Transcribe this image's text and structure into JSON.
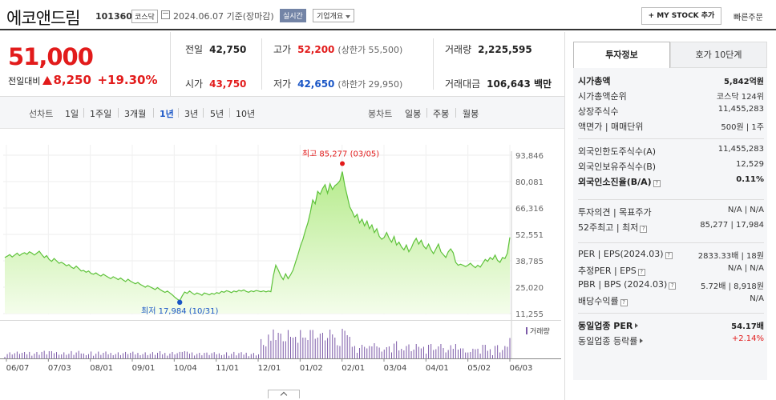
{
  "header": {
    "name": "에코앤드림",
    "code": "101360",
    "market": "코스닥",
    "date_text": "2024.06.07 기준(장마감)",
    "realtime_label": "실시간",
    "corp_info_label": "기업개요",
    "mystock_label": "MY STOCK 추가",
    "fast_order_label": "빠른주문"
  },
  "price": {
    "current": "51,000",
    "change_label": "전일대비",
    "change": "8,250",
    "change_pct": "+19.30%"
  },
  "quote": {
    "prev_label": "전일",
    "prev": "42,750",
    "high_label": "고가",
    "high": "52,200",
    "high_sub": "(상한가 55,500)",
    "volume_label": "거래량",
    "volume": "2,225,595",
    "open_label": "시가",
    "open": "43,750",
    "low_label": "저가",
    "low": "42,650",
    "low_sub": "(하한가 29,950)",
    "amount_label": "거래대금",
    "amount": "106,643 백만"
  },
  "tabs": {
    "line_label": "선차트",
    "periods": [
      "1일",
      "1주일",
      "3개월",
      "1년",
      "3년",
      "5년",
      "10년"
    ],
    "active": "1년",
    "candle_label": "봉차트",
    "candles": [
      "일봉",
      "주봉",
      "월봉"
    ]
  },
  "chart_data": {
    "type": "area",
    "y_ticks": [
      "93,846",
      "80,081",
      "66,316",
      "52,551",
      "38,785",
      "25,020",
      "11,255"
    ],
    "ylim": [
      11255,
      93846
    ],
    "x_ticks": [
      "06/07",
      "07/03",
      "08/01",
      "09/01",
      "10/04",
      "11/01",
      "12/01",
      "01/02",
      "02/01",
      "03/04",
      "04/01",
      "05/02",
      "06/03"
    ],
    "high_label": "최고 85,277 (03/05)",
    "low_label": "최저 17,984 (10/31)",
    "volume_label": "거래량",
    "series": [
      {
        "values": [
          40500,
          41200,
          42000,
          40800,
          41800,
          42800,
          41500,
          42500,
          43000,
          42200,
          43500,
          42800,
          41800,
          42800,
          43800,
          42000,
          40500,
          41500,
          39500,
          38500,
          40000,
          38800,
          37500,
          38000,
          37200,
          36200,
          36800,
          35500,
          34800,
          36000,
          34800,
          33500,
          33800,
          32800,
          33500,
          32200,
          31800,
          32500,
          31500,
          30800,
          31800,
          31000,
          30200,
          29500,
          30500,
          29800,
          29000,
          29800,
          28800,
          28000,
          29200,
          28200,
          27500,
          26800,
          27500,
          26500,
          25800,
          25000,
          25800,
          25200,
          24500,
          23800,
          24800,
          23800,
          23000,
          22300,
          23000,
          22000,
          21000,
          19800,
          18800,
          17984,
          20500,
          22500,
          21800,
          23000,
          22000,
          21200,
          22000,
          21500,
          20800,
          22000,
          21600,
          21000,
          21800,
          21400,
          22200,
          21800,
          22800,
          22400,
          23200,
          22800,
          22200,
          23000,
          22600,
          23400,
          23000,
          23600,
          22800,
          22400,
          23100,
          22700,
          23300,
          23000,
          22700,
          23100,
          22600,
          23000,
          22700,
          31000,
          36500,
          34000,
          31000,
          29000,
          32000,
          29500,
          31500,
          34000,
          38000,
          42000,
          46500,
          50000,
          54500,
          58500,
          64000,
          70500,
          68500,
          75000,
          73500,
          76500,
          78500,
          74000,
          79000,
          76000,
          78000,
          79000,
          80500,
          85277,
          78000,
          72500,
          67000,
          64500,
          61500,
          63000,
          58500,
          60500,
          57000,
          59500,
          55500,
          57500,
          53500,
          55500,
          51500,
          50000,
          51000,
          53500,
          50500,
          48500,
          51500,
          47000,
          48500,
          46000,
          44500,
          47000,
          43500,
          45500,
          48500,
          50500,
          47500,
          49500,
          46500,
          45000,
          47500,
          44500,
          42500,
          45000,
          47500,
          43500,
          42000,
          40500,
          43500,
          45000,
          43000,
          38000,
          36500,
          37000,
          36500,
          35800,
          36500,
          37500,
          36200,
          35200,
          36500,
          35500,
          37500,
          39500,
          38500,
          40500,
          39500,
          41800,
          39000,
          38000,
          40500,
          40000,
          42750,
          51000
        ]
      }
    ]
  },
  "right_panel": {
    "tab_invest": "투자정보",
    "tab_hoga": "호가 10단계",
    "rows1": [
      {
        "k": "시가총액",
        "v": "5,842억원",
        "bold": true
      },
      {
        "k": "시가총액순위",
        "v": "코스닥 124위"
      },
      {
        "k": "상장주식수",
        "v": "11,455,283"
      },
      {
        "k": "액면가 | 매매단위",
        "v": "500원 | 1주"
      }
    ],
    "rows2": [
      {
        "k": "외국인한도주식수(A)",
        "v": "11,455,283"
      },
      {
        "k": "외국인보유주식수(B)",
        "v": "12,529"
      },
      {
        "k": "외국인소진율(B/A)",
        "v": "0.11%",
        "bold": true,
        "q": true
      }
    ],
    "rows3": [
      {
        "k": "투자의견 | 목표주가",
        "v": "N/A | N/A"
      },
      {
        "k": "52주최고 | 최저",
        "v": "85,277 | 17,984",
        "q": true
      }
    ],
    "rows4": [
      {
        "k": "PER | EPS(2024.03)",
        "v": "2833.33배 | 18원",
        "q": true
      },
      {
        "k": "추정PER | EPS",
        "v": "N/A | N/A",
        "q": true
      },
      {
        "k": "PBR | BPS (2024.03)",
        "v": "5.72배 | 8,918원",
        "q": true
      },
      {
        "k": "배당수익률",
        "v": "N/A",
        "q": true
      }
    ],
    "rows5": [
      {
        "k": "동일업종 PER",
        "v": "54.17배",
        "bold": true,
        "arrow": true
      },
      {
        "k": "동일업종 등락률",
        "v": "+2.14%",
        "red": true,
        "arrow": true
      }
    ]
  }
}
